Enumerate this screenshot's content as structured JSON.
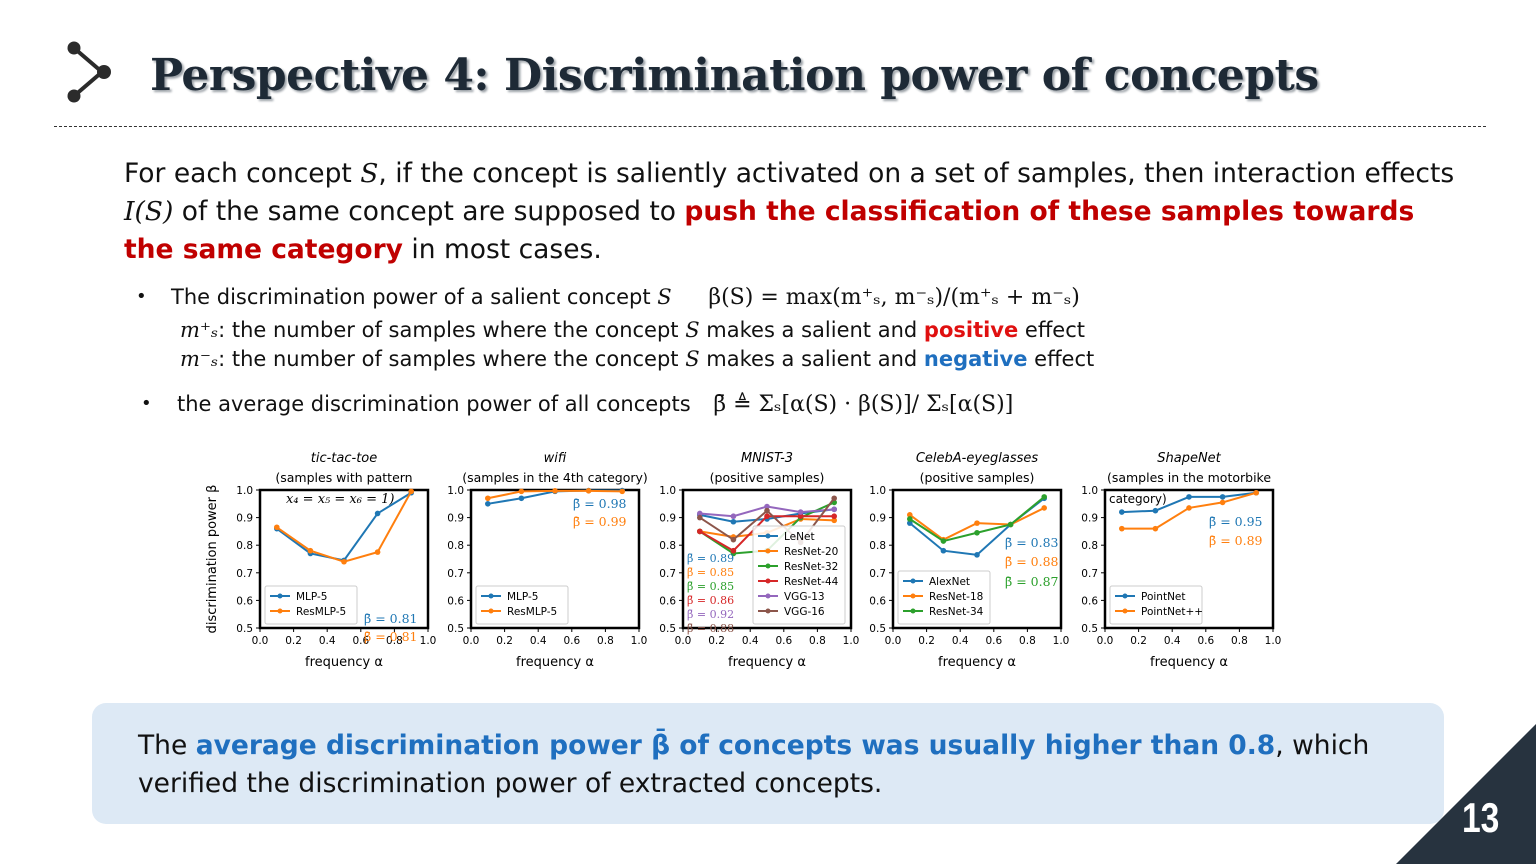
{
  "slide": {
    "title": "Perspective 4: Discrimination power of concepts",
    "page_number": "13"
  },
  "intro": {
    "p1": "For each concept ",
    "s1": "S",
    "p2": ", if the concept is saliently activated on a set of samples, then interaction effects ",
    "s2": "I(S)",
    "p3": " of the same concept are supposed to ",
    "highlight": "push the classification of these samples towards the same category",
    "p4": " in most cases."
  },
  "bullets": {
    "b1_text": "The discrimination power of a salient concept ",
    "b1_var": "S",
    "b1_formula": "β(S) = max(m⁺ₛ, m⁻ₛ)/(m⁺ₛ + m⁻ₛ)",
    "plus_sym": "m⁺ₛ",
    "plus_text_a": ": the number of samples where the concept ",
    "plus_var": "S",
    "plus_text_b": " makes a salient and ",
    "plus_word": "positive",
    "plus_tail": " effect",
    "minus_sym": "m⁻ₛ",
    "minus_text_a": ": the number of samples where the concept ",
    "minus_var": "S",
    "minus_text_b": " makes a salient and ",
    "minus_word": "negative",
    "minus_tail": " effect",
    "b2_text": "the average discrimination power of all concepts",
    "b2_formula": "β̄ ≜ Σₛ[α(S) · β(S)]/ Σₛ[α(S)]"
  },
  "summary": {
    "p1": "The ",
    "b1": "average discrimination power β̄ of concepts was usually higher than 0.8",
    "p2": ", which verified the discrimination power of extracted concepts."
  },
  "chart_data": [
    {
      "type": "line",
      "title": "tic-tac-toe",
      "subtitle": "(samples with pattern",
      "annotation": "x₄ = x₅ = x₆ = 1)",
      "xlabel": "frequency α",
      "ylabel": "discrimination power β",
      "xlim": [
        0.0,
        1.0
      ],
      "ylim": [
        0.5,
        1.0
      ],
      "xticks": [
        "0.0",
        "0.2",
        "0.4",
        "0.6",
        "0.8",
        "1.0"
      ],
      "yticks": [
        "0.5",
        "0.6",
        "0.7",
        "0.8",
        "0.9",
        "1.0"
      ],
      "legend_position": "lower-left",
      "series": [
        {
          "name": "MLP-5",
          "color": "#1f77b4",
          "x": [
            0.1,
            0.3,
            0.5,
            0.7,
            0.9
          ],
          "values": [
            0.86,
            0.77,
            0.745,
            0.915,
            0.99
          ],
          "beta_label": "β̄ = 0.81"
        },
        {
          "name": "ResMLP-5",
          "color": "#ff7f0e",
          "x": [
            0.1,
            0.3,
            0.5,
            0.7,
            0.9
          ],
          "values": [
            0.865,
            0.78,
            0.74,
            0.775,
            0.995
          ],
          "beta_label": "β̄ = 0.81"
        }
      ]
    },
    {
      "type": "line",
      "title": "wifi",
      "subtitle": "(samples in the 4th category)",
      "xlabel": "frequency α",
      "ylabel": "",
      "xlim": [
        0.0,
        1.0
      ],
      "ylim": [
        0.5,
        1.0
      ],
      "xticks": [
        "0.0",
        "0.2",
        "0.4",
        "0.6",
        "0.8",
        "1.0"
      ],
      "yticks": [
        "0.5",
        "0.6",
        "0.7",
        "0.8",
        "0.9",
        "1.0"
      ],
      "legend_position": "lower-left",
      "series": [
        {
          "name": "MLP-5",
          "color": "#1f77b4",
          "x": [
            0.1,
            0.3,
            0.5,
            0.7,
            0.9
          ],
          "values": [
            0.95,
            0.97,
            0.995,
            0.998,
            0.998
          ],
          "beta_label": "β̄ = 0.98"
        },
        {
          "name": "ResMLP-5",
          "color": "#ff7f0e",
          "x": [
            0.1,
            0.3,
            0.5,
            0.7,
            0.9
          ],
          "values": [
            0.97,
            0.995,
            0.997,
            0.997,
            0.995
          ],
          "beta_label": "β̄ = 0.99"
        }
      ]
    },
    {
      "type": "line",
      "title": "MNIST-3",
      "subtitle": "(positive samples)",
      "xlabel": "frequency α",
      "ylabel": "",
      "xlim": [
        0.0,
        1.0
      ],
      "ylim": [
        0.5,
        1.0
      ],
      "xticks": [
        "0.0",
        "0.2",
        "0.4",
        "0.6",
        "0.8",
        "1.0"
      ],
      "yticks": [
        "0.5",
        "0.6",
        "0.7",
        "0.8",
        "0.9",
        "1.0"
      ],
      "legend_position": "lower-right",
      "series": [
        {
          "name": "LeNet",
          "color": "#1f77b4",
          "x": [
            0.1,
            0.3,
            0.5,
            0.7,
            0.9
          ],
          "values": [
            0.91,
            0.885,
            0.895,
            0.915,
            0.93
          ],
          "beta_label": "β̄ = 0.89"
        },
        {
          "name": "ResNet-20",
          "color": "#ff7f0e",
          "x": [
            0.1,
            0.3,
            0.5,
            0.7,
            0.9
          ],
          "values": [
            0.85,
            0.83,
            0.845,
            0.895,
            0.89
          ],
          "beta_label": "β̄ = 0.85"
        },
        {
          "name": "ResNet-32",
          "color": "#2ca02c",
          "x": [
            0.1,
            0.3,
            0.5,
            0.7,
            0.9
          ],
          "values": [
            0.85,
            0.77,
            0.78,
            0.9,
            0.955
          ],
          "beta_label": "β̄ = 0.85"
        },
        {
          "name": "ResNet-44",
          "color": "#d62728",
          "x": [
            0.1,
            0.3,
            0.5,
            0.7,
            0.9
          ],
          "values": [
            0.85,
            0.78,
            0.905,
            0.905,
            0.905
          ],
          "beta_label": "β̄ = 0.86"
        },
        {
          "name": "VGG-13",
          "color": "#9467bd",
          "x": [
            0.1,
            0.3,
            0.5,
            0.7,
            0.9
          ],
          "values": [
            0.915,
            0.905,
            0.94,
            0.92,
            0.93
          ],
          "beta_label": "β̄ = 0.92"
        },
        {
          "name": "VGG-16",
          "color": "#8c564b",
          "x": [
            0.1,
            0.3,
            0.5,
            0.7,
            0.9
          ],
          "values": [
            0.9,
            0.82,
            0.925,
            0.81,
            0.97
          ],
          "beta_label": "β̄ = 0.88"
        }
      ]
    },
    {
      "type": "line",
      "title": "CelebA-eyeglasses",
      "subtitle": "(positive samples)",
      "xlabel": "frequency α",
      "ylabel": "",
      "xlim": [
        0.0,
        1.0
      ],
      "ylim": [
        0.5,
        1.0
      ],
      "xticks": [
        "0.0",
        "0.2",
        "0.4",
        "0.6",
        "0.8",
        "1.0"
      ],
      "yticks": [
        "0.5",
        "0.6",
        "0.7",
        "0.8",
        "0.9",
        "1.0"
      ],
      "legend_position": "lower-left",
      "series": [
        {
          "name": "AlexNet",
          "color": "#1f77b4",
          "x": [
            0.1,
            0.3,
            0.5,
            0.7,
            0.9
          ],
          "values": [
            0.88,
            0.78,
            0.765,
            0.875,
            0.97
          ],
          "beta_label": "β̄ = 0.83"
        },
        {
          "name": "ResNet-18",
          "color": "#ff7f0e",
          "x": [
            0.1,
            0.3,
            0.5,
            0.7,
            0.9
          ],
          "values": [
            0.91,
            0.82,
            0.88,
            0.875,
            0.935
          ],
          "beta_label": "β̄ = 0.88"
        },
        {
          "name": "ResNet-34",
          "color": "#2ca02c",
          "x": [
            0.1,
            0.3,
            0.5,
            0.7,
            0.9
          ],
          "values": [
            0.895,
            0.815,
            0.845,
            0.875,
            0.975
          ],
          "beta_label": "β̄ = 0.87"
        }
      ]
    },
    {
      "type": "line",
      "title": "ShapeNet",
      "subtitle": "(samples in the motorbike",
      "annotation": "category)",
      "xlabel": "frequency α",
      "ylabel": "",
      "xlim": [
        0.0,
        1.0
      ],
      "ylim": [
        0.5,
        1.0
      ],
      "xticks": [
        "0.0",
        "0.2",
        "0.4",
        "0.6",
        "0.8",
        "1.0"
      ],
      "yticks": [
        "0.5",
        "0.6",
        "0.7",
        "0.8",
        "0.9",
        "1.0"
      ],
      "legend_position": "lower-left",
      "series": [
        {
          "name": "PointNet",
          "color": "#1f77b4",
          "x": [
            0.1,
            0.3,
            0.5,
            0.7,
            0.9
          ],
          "values": [
            0.92,
            0.925,
            0.975,
            0.975,
            0.99
          ],
          "beta_label": "β̄ = 0.95"
        },
        {
          "name": "PointNet++",
          "color": "#ff7f0e",
          "x": [
            0.1,
            0.3,
            0.5,
            0.7,
            0.9
          ],
          "values": [
            0.86,
            0.86,
            0.935,
            0.955,
            0.99
          ],
          "beta_label": "β̄ = 0.89"
        }
      ]
    }
  ]
}
